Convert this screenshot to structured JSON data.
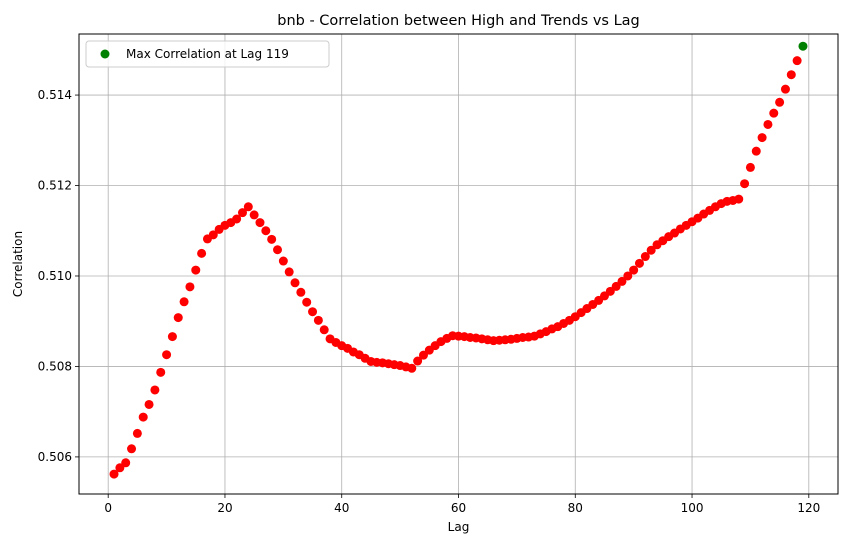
{
  "chart_data": {
    "type": "scatter",
    "title": "bnb - Correlation between High and Trends vs Lag",
    "xlabel": "Lag",
    "ylabel": "Correlation",
    "xlim": [
      -5,
      125
    ],
    "ylim": [
      0.50518,
      0.51535
    ],
    "xticks": [
      0,
      20,
      40,
      60,
      80,
      100,
      120
    ],
    "yticks": [
      0.506,
      0.508,
      0.51,
      0.512,
      0.514
    ],
    "ytick_labels": [
      "0.506",
      "0.508",
      "0.510",
      "0.512",
      "0.514"
    ],
    "grid": true,
    "legend_position": "top-left",
    "series": [
      {
        "color": "#ff0000",
        "x": [
          1,
          2,
          3,
          4,
          5,
          6,
          7,
          8,
          9,
          10,
          11,
          12,
          13,
          14,
          15,
          16,
          17,
          18,
          19,
          20,
          21,
          22,
          23,
          24,
          25,
          26,
          27,
          28,
          29,
          30,
          31,
          32,
          33,
          34,
          35,
          36,
          37,
          38,
          39,
          40,
          41,
          42,
          43,
          44,
          45,
          46,
          47,
          48,
          49,
          50,
          51,
          52,
          53,
          54,
          55,
          56,
          57,
          58,
          59,
          60,
          61,
          62,
          63,
          64,
          65,
          66,
          67,
          68,
          69,
          70,
          71,
          72,
          73,
          74,
          75,
          76,
          77,
          78,
          79,
          80,
          81,
          82,
          83,
          84,
          85,
          86,
          87,
          88,
          89,
          90,
          91,
          92,
          93,
          94,
          95,
          96,
          97,
          98,
          99,
          100,
          101,
          102,
          103,
          104,
          105,
          106,
          107,
          108,
          109,
          110,
          111,
          112,
          113,
          114,
          115,
          116,
          117,
          118
        ],
        "y": [
          0.50562,
          0.50576,
          0.50587,
          0.50618,
          0.50652,
          0.50688,
          0.50716,
          0.50748,
          0.50787,
          0.50826,
          0.50866,
          0.50908,
          0.50943,
          0.50976,
          0.51013,
          0.5105,
          0.51082,
          0.51091,
          0.51103,
          0.51112,
          0.51118,
          0.51126,
          0.5114,
          0.51153,
          0.51135,
          0.51118,
          0.511,
          0.51081,
          0.51058,
          0.51033,
          0.51009,
          0.50985,
          0.50964,
          0.50942,
          0.50921,
          0.50902,
          0.50881,
          0.50861,
          0.50853,
          0.50846,
          0.5084,
          0.50832,
          0.50826,
          0.50818,
          0.50811,
          0.50809,
          0.50808,
          0.50806,
          0.50804,
          0.50802,
          0.50799,
          0.50796,
          0.50812,
          0.50825,
          0.50836,
          0.50846,
          0.50855,
          0.50862,
          0.50868,
          0.50867,
          0.50866,
          0.50864,
          0.50863,
          0.50861,
          0.50859,
          0.50857,
          0.50858,
          0.50859,
          0.5086,
          0.50862,
          0.50864,
          0.50865,
          0.50867,
          0.50872,
          0.50877,
          0.50883,
          0.50888,
          0.50895,
          0.50902,
          0.5091,
          0.50919,
          0.50928,
          0.50937,
          0.50946,
          0.50956,
          0.50966,
          0.50977,
          0.50988,
          0.51,
          0.51013,
          0.51028,
          0.51043,
          0.51057,
          0.51069,
          0.51078,
          0.51087,
          0.51095,
          0.51104,
          0.51112,
          0.5112,
          0.51128,
          0.51137,
          0.51145,
          0.51153,
          0.5116,
          0.51165,
          0.51167,
          0.5117,
          0.51204,
          0.5124,
          0.51276,
          0.51306,
          0.51335,
          0.5136,
          0.51384,
          0.51413,
          0.51445,
          0.51476
        ]
      },
      {
        "name": "Max Correlation at Lag 119",
        "color": "#008000",
        "x": [
          119
        ],
        "y": [
          0.51508
        ]
      }
    ]
  }
}
